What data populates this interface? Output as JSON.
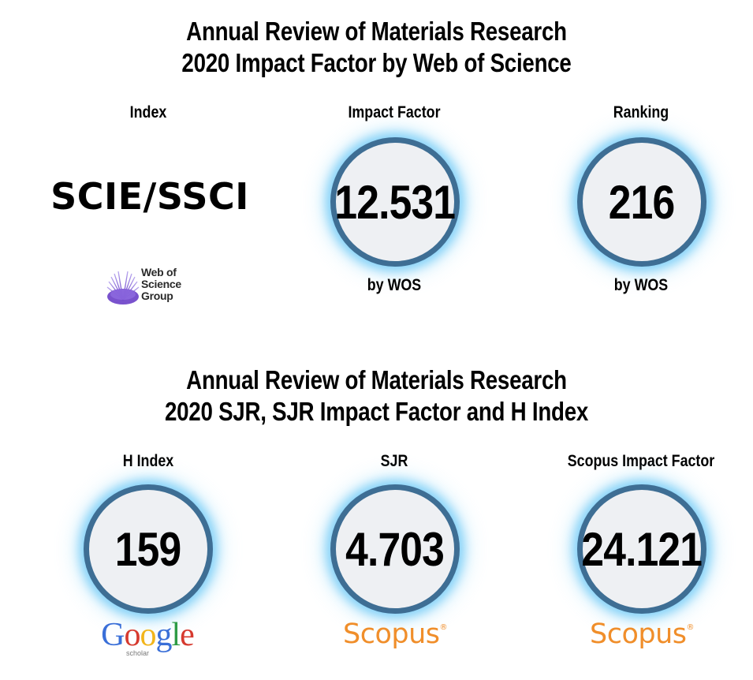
{
  "section1": {
    "title_line1": "Annual Review of Materials Research",
    "title_line2": "2020 Impact Factor by Web of Science",
    "index": {
      "label": "Index",
      "value": "SCIE/SSCI",
      "logo": {
        "line1": "Web of",
        "line2": "Science",
        "line3": "Group"
      }
    },
    "impact_factor": {
      "label": "Impact Factor",
      "value": "12.531",
      "source": "by WOS"
    },
    "ranking": {
      "label": "Ranking",
      "value": "216",
      "source": "by WOS"
    }
  },
  "section2": {
    "title_line1": "Annual Review of Materials Research",
    "title_line2": "2020 SJR, SJR Impact Factor and H Index",
    "h_index": {
      "label": "H Index",
      "value": "159",
      "logo_text": "Google",
      "logo_sub": "scholar"
    },
    "sjr": {
      "label": "SJR",
      "value": "4.703",
      "logo_text": "Scopus"
    },
    "scopus_if": {
      "label": "Scopus Impact Factor",
      "value": "24.121",
      "logo_text": "Scopus"
    }
  },
  "colors": {
    "circle_border": "#3e6e94",
    "circle_fill": "#eef0f3",
    "glow": "#6ec8f5",
    "scopus_orange": "#f08e2a",
    "wos_purple": "#6a3fc8",
    "google_blue": "#3a6fd8",
    "google_red": "#d63a2f",
    "google_yellow": "#f2b51b",
    "google_green": "#2e9b45"
  },
  "icons": [
    "web-of-science-logo",
    "google-scholar-logo",
    "scopus-logo"
  ]
}
